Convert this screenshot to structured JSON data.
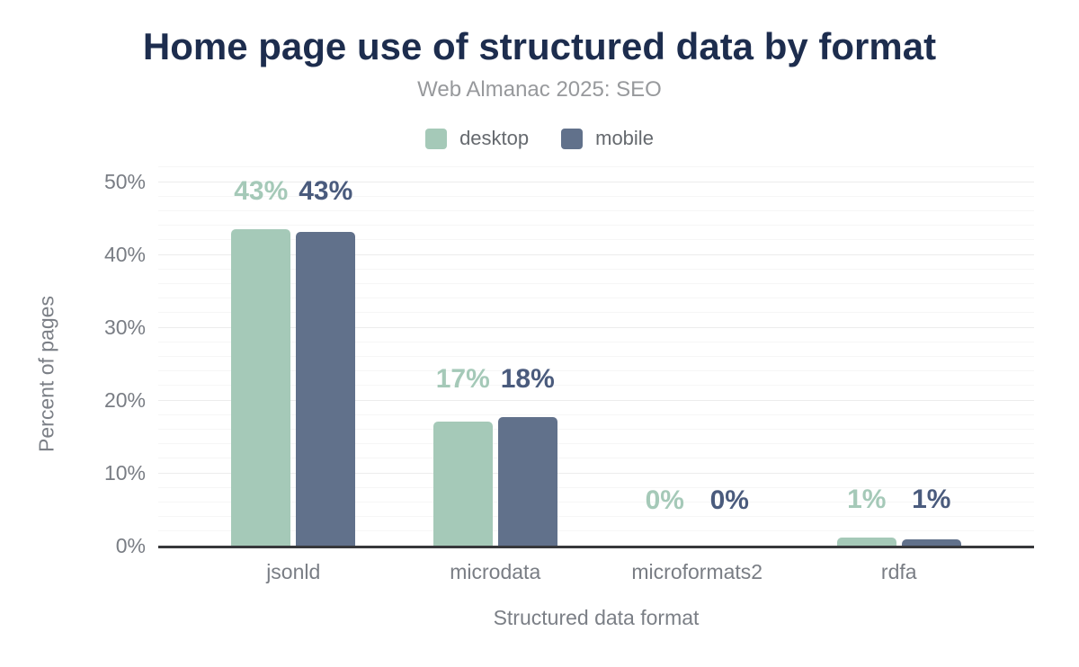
{
  "title": "Home page use of structured data by format",
  "subtitle": "Web Almanac 2025: SEO",
  "chart_data": {
    "type": "bar",
    "title": "Home page use of structured data by format",
    "subtitle": "Web Almanac 2025: SEO",
    "categories": [
      "jsonld",
      "microdata",
      "microformats2",
      "rdfa"
    ],
    "series": [
      {
        "name": "desktop",
        "color": "#a5c9b8",
        "label_color": "#a5c9b8",
        "values": [
          43,
          17,
          0,
          1
        ],
        "render_values": [
          43.5,
          17.0,
          0,
          1.1
        ],
        "labels": [
          "43%",
          "17%",
          "0%",
          "1%"
        ]
      },
      {
        "name": "mobile",
        "color": "#61718b",
        "label_color": "#4a5b7d",
        "values": [
          43,
          18,
          0,
          1
        ],
        "render_values": [
          43.1,
          17.7,
          0,
          0.9
        ],
        "labels": [
          "43%",
          "18%",
          "0%",
          "1%"
        ]
      }
    ],
    "xlabel": "Structured data format",
    "ylabel": "Percent of pages",
    "ylim": [
      0,
      50
    ],
    "yticks": [
      {
        "label": "0%",
        "value": 0
      },
      {
        "label": "10%",
        "value": 10
      },
      {
        "label": "20%",
        "value": 20
      },
      {
        "label": "30%",
        "value": 30
      },
      {
        "label": "40%",
        "value": 40
      },
      {
        "label": "50%",
        "value": 50
      }
    ],
    "grid": true,
    "legend_position": "top",
    "colors": {
      "title": "#1d2d4e",
      "subtitle": "#97999c",
      "axis_line": "#37383b",
      "tick_text": "#797d84",
      "grid_minor": "#f6f6f6",
      "grid_major": "#ececec"
    }
  }
}
